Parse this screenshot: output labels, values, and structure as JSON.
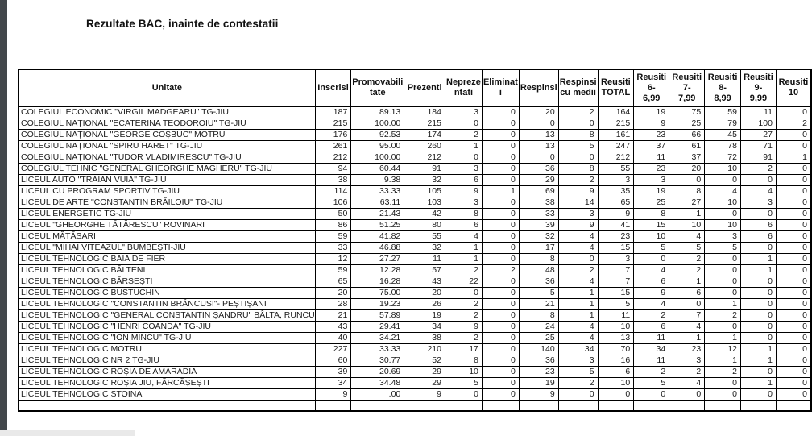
{
  "page": {
    "title": "Rezultate BAC, inainte de contestatii"
  },
  "table": {
    "columns": [
      "Unitate",
      "Inscrisi",
      "Promovabili\ntate",
      "Prezenti",
      "Nepreze\nntati",
      "Eliminat\ni",
      "Respinsi",
      "Respinsi\ncu medii",
      "Reusiti\nTOTAL",
      "Reusiti 6-\n6,99",
      "Reusiti 7-\n7,99",
      "Reusiti 8-\n8,99",
      "Reusiti 9-\n9,99",
      "Reusiti\n10"
    ],
    "rows": [
      [
        "COLEGIUL ECONOMIC \"VIRGIL MADGEARU\" TG-JIU",
        187,
        "89.13",
        184,
        3,
        0,
        20,
        2,
        164,
        19,
        75,
        59,
        11,
        0
      ],
      [
        "COLEGIUL NAȚIONAL \"ECATERINA TEODOROIU\" TG-JIU",
        215,
        "100.00",
        215,
        0,
        0,
        0,
        0,
        215,
        9,
        25,
        79,
        100,
        2
      ],
      [
        "COLEGIUL NAȚIONAL \"GEORGE COȘBUC\" MOTRU",
        176,
        "92.53",
        174,
        2,
        0,
        13,
        8,
        161,
        23,
        66,
        45,
        27,
        0
      ],
      [
        "COLEGIUL NAȚIONAL \"SPIRU HARET\" TG-JIU",
        261,
        "95.00",
        260,
        1,
        0,
        13,
        5,
        247,
        37,
        61,
        78,
        71,
        0
      ],
      [
        "COLEGIUL NAȚIONAL \"TUDOR VLADIMIRESCU\" TG-JIU",
        212,
        "100.00",
        212,
        0,
        0,
        0,
        0,
        212,
        11,
        37,
        72,
        91,
        1
      ],
      [
        "COLEGIUL TEHNIC \"GENERAL GHEORGHE MAGHERU\" TG-JIU",
        94,
        "60.44",
        91,
        3,
        0,
        36,
        8,
        55,
        23,
        20,
        10,
        2,
        0
      ],
      [
        "LICEUL AUTO \"TRAIAN VUIA\" TG-JIU",
        38,
        "9.38",
        32,
        6,
        0,
        29,
        2,
        3,
        3,
        0,
        0,
        0,
        0
      ],
      [
        "LICEUL CU PROGRAM SPORTIV TG-JIU",
        114,
        "33.33",
        105,
        9,
        1,
        69,
        9,
        35,
        19,
        8,
        4,
        4,
        0
      ],
      [
        "LICEUL DE ARTE \"CONSTANTIN BRĂILOIU\" TG-JIU",
        106,
        "63.11",
        103,
        3,
        0,
        38,
        14,
        65,
        25,
        27,
        10,
        3,
        0
      ],
      [
        "LICEUL ENERGETIC TG-JIU",
        50,
        "21.43",
        42,
        8,
        0,
        33,
        3,
        9,
        8,
        1,
        0,
        0,
        0
      ],
      [
        "LICEUL \"GHEORGHE TĂTĂRESCU\" ROVINARI",
        86,
        "51.25",
        80,
        6,
        0,
        39,
        9,
        41,
        15,
        10,
        10,
        6,
        0
      ],
      [
        "LICEUL MĂTĂSARI",
        59,
        "41.82",
        55,
        4,
        0,
        32,
        4,
        23,
        10,
        4,
        3,
        6,
        0
      ],
      [
        "LICEUL \"MIHAI VITEAZUL\" BUMBEȘTI-JIU",
        33,
        "46.88",
        32,
        1,
        0,
        17,
        4,
        15,
        5,
        5,
        5,
        0,
        0
      ],
      [
        "LICEUL TEHNOLOGIC BAIA DE FIER",
        12,
        "27.27",
        11,
        1,
        0,
        8,
        0,
        3,
        0,
        2,
        0,
        1,
        0
      ],
      [
        "LICEUL TEHNOLOGIC BĂLTENI",
        59,
        "12.28",
        57,
        2,
        2,
        48,
        2,
        7,
        4,
        2,
        0,
        1,
        0
      ],
      [
        "LICEUL TEHNOLOGIC BĂRSEȘTI",
        65,
        "16.28",
        43,
        22,
        0,
        36,
        4,
        7,
        6,
        1,
        0,
        0,
        0
      ],
      [
        "LICEUL TEHNOLOGIC BUSTUCHIN",
        20,
        "75.00",
        20,
        0,
        0,
        5,
        1,
        15,
        9,
        6,
        0,
        0,
        0
      ],
      [
        "LICEUL TEHNOLOGIC \"CONSTANTIN BRĂNCUȘI\"- PEȘTIȘANI",
        28,
        "19.23",
        26,
        2,
        0,
        21,
        1,
        5,
        4,
        0,
        1,
        0,
        0
      ],
      [
        "LICEUL TEHNOLOGIC \"GENERAL CONSTANTIN ȘANDRU\" BÂLTA, RUNCU",
        21,
        "57.89",
        19,
        2,
        0,
        8,
        1,
        11,
        2,
        7,
        2,
        0,
        0
      ],
      [
        "LICEUL TEHNOLOGIC \"HENRI COANDĂ\" TG-JIU",
        43,
        "29.41",
        34,
        9,
        0,
        24,
        4,
        10,
        6,
        4,
        0,
        0,
        0
      ],
      [
        "LICEUL TEHNOLOGIC \"ION MINCU\" TG-JIU",
        40,
        "34.21",
        38,
        2,
        0,
        25,
        4,
        13,
        11,
        1,
        1,
        0,
        0
      ],
      [
        "LICEUL TEHNOLOGIC MOTRU",
        227,
        "33.33",
        210,
        17,
        0,
        140,
        34,
        70,
        34,
        23,
        12,
        1,
        0
      ],
      [
        "LICEUL TEHNOLOGIC NR 2 TG-JIU",
        60,
        "30.77",
        52,
        8,
        0,
        36,
        3,
        16,
        11,
        3,
        1,
        1,
        0
      ],
      [
        "LICEUL TEHNOLOGIC ROȘIA DE AMARADIA",
        39,
        "20.69",
        29,
        10,
        0,
        23,
        5,
        6,
        2,
        2,
        2,
        0,
        0
      ],
      [
        "LICEUL TEHNOLOGIC ROȘIA JIU, FĂRCĂȘEȘTI",
        34,
        "34.48",
        29,
        5,
        0,
        19,
        2,
        10,
        5,
        4,
        0,
        1,
        0
      ],
      [
        "LICEUL TEHNOLOGIC STOINA",
        9,
        ".00",
        9,
        0,
        0,
        9,
        0,
        0,
        0,
        0,
        0,
        0,
        0
      ]
    ]
  }
}
